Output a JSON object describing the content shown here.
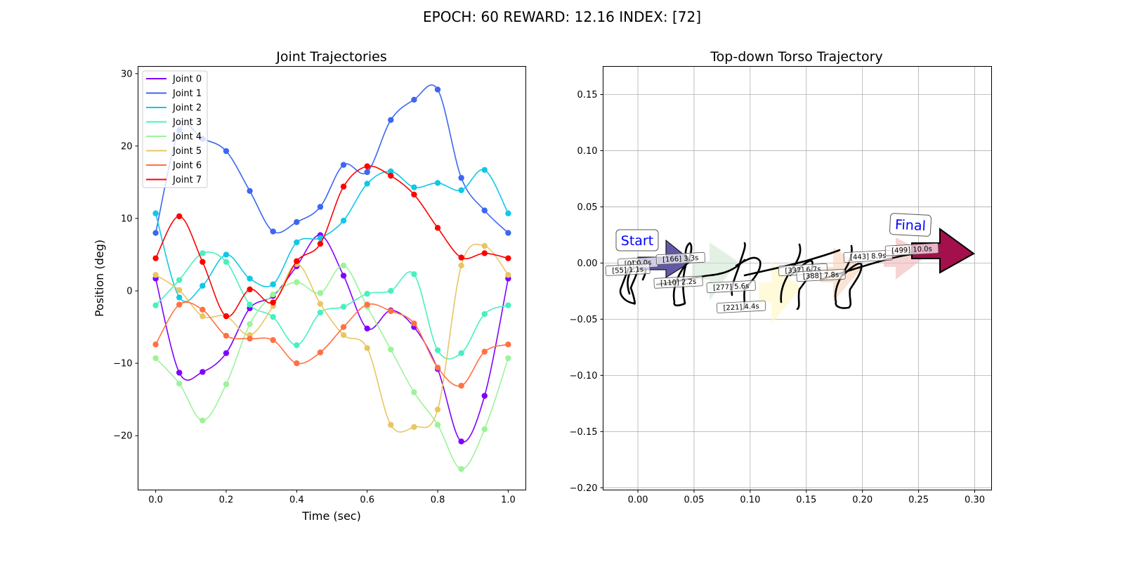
{
  "figure": {
    "suptitle": "EPOCH:  60 REWARD:  12.16 INDEX: [72]"
  },
  "chart_data": [
    {
      "type": "line",
      "title": "Joint Trajectories",
      "xlabel": "Time (sec)",
      "ylabel": "Position (deg)",
      "xlim": [
        -0.05,
        1.05
      ],
      "ylim": [
        -27.5,
        31
      ],
      "xticks": [
        0.0,
        0.2,
        0.4,
        0.6,
        0.8,
        1.0
      ],
      "xtick_labels": [
        "0.0",
        "0.2",
        "0.4",
        "0.6",
        "0.8",
        "1.0"
      ],
      "yticks": [
        -20,
        -10,
        0,
        10,
        20,
        30
      ],
      "ytick_labels": [
        "−20",
        "−10",
        "0",
        "10",
        "20",
        "30"
      ],
      "grid": false,
      "legend": "upper-left",
      "x": [
        0.0,
        0.067,
        0.133,
        0.2,
        0.267,
        0.333,
        0.4,
        0.467,
        0.533,
        0.6,
        0.667,
        0.733,
        0.8,
        0.867,
        0.933,
        1.0
      ],
      "series": [
        {
          "name": "Joint 0",
          "color": "#8000ff",
          "values": [
            1.7,
            -11.3,
            -11.2,
            -8.6,
            -2.4,
            -0.7,
            3.4,
            7.7,
            2.1,
            -5.2,
            -2.7,
            -5.0,
            -10.8,
            -20.8,
            -14.5,
            1.7
          ]
        },
        {
          "name": "Joint 1",
          "color": "#3c67f2",
          "values": [
            8.0,
            22.2,
            21.0,
            19.3,
            13.8,
            8.2,
            9.5,
            11.6,
            17.4,
            16.4,
            23.6,
            26.4,
            27.8,
            15.6,
            11.1,
            8.0
          ]
        },
        {
          "name": "Joint 2",
          "color": "#10c8e6",
          "values": [
            10.7,
            -0.9,
            0.7,
            5.0,
            1.7,
            0.9,
            6.7,
            7.3,
            9.7,
            14.8,
            16.5,
            14.3,
            14.9,
            13.9,
            16.7,
            10.7
          ]
        },
        {
          "name": "Joint 3",
          "color": "#48f0c0",
          "values": [
            -2.0,
            1.5,
            5.2,
            4.0,
            -1.9,
            -3.6,
            -7.5,
            -3.0,
            -2.2,
            -0.4,
            0.0,
            2.3,
            -8.2,
            -8.6,
            -3.2,
            -2.0
          ]
        },
        {
          "name": "Joint 4",
          "color": "#9cf39a",
          "values": [
            -9.3,
            -12.8,
            -17.9,
            -12.9,
            -4.6,
            -0.5,
            1.2,
            -0.3,
            3.5,
            -2.2,
            -8.1,
            -14.0,
            -18.5,
            -24.6,
            -19.1,
            -9.3
          ]
        },
        {
          "name": "Joint 5",
          "color": "#e8c664",
          "values": [
            2.2,
            0.1,
            -3.5,
            -3.5,
            -6.1,
            -2.1,
            3.7,
            -1.8,
            -6.1,
            -7.9,
            -18.5,
            -18.8,
            -16.4,
            3.5,
            6.2,
            2.2
          ]
        },
        {
          "name": "Joint 6",
          "color": "#ff7144",
          "values": [
            -7.4,
            -1.9,
            -2.6,
            -6.2,
            -6.6,
            -6.8,
            -10.0,
            -8.5,
            -5.0,
            -1.9,
            -2.8,
            -4.5,
            -10.6,
            -13.1,
            -8.4,
            -7.4
          ]
        },
        {
          "name": "Joint 7",
          "color": "#ff0000",
          "values": [
            4.5,
            10.3,
            4.0,
            -3.5,
            0.2,
            -1.6,
            4.1,
            6.5,
            14.4,
            17.2,
            15.9,
            13.3,
            8.7,
            4.6,
            5.2,
            4.5
          ]
        }
      ]
    },
    {
      "type": "scatter",
      "title": "Top-down Torso Trajectory",
      "xlim": [
        -0.031,
        0.315
      ],
      "ylim": [
        -0.202,
        0.175
      ],
      "xticks": [
        0.0,
        0.05,
        0.1,
        0.15,
        0.2,
        0.25,
        0.3
      ],
      "xtick_labels": [
        "0.00",
        "0.05",
        "0.10",
        "0.15",
        "0.20",
        "0.25",
        "0.30"
      ],
      "yticks": [
        -0.2,
        -0.15,
        -0.1,
        -0.05,
        0.0,
        0.05,
        0.1,
        0.15
      ],
      "ytick_labels": [
        "−0.20",
        "−0.15",
        "−0.10",
        "−0.05",
        "0.00",
        "0.05",
        "0.10",
        "0.15"
      ],
      "grid": true,
      "start_label": "Start",
      "final_label": "Final",
      "arrow_colors": [
        "#3b2f8f",
        "#cce6cf",
        "#fff6c2",
        "#f9cdb3",
        "#f0b7b9",
        "#a3104b"
      ],
      "labels": [
        {
          "text": "[0] 0.0s",
          "x": 0.0,
          "y": 0.0
        },
        {
          "text": "[55] 1.1s",
          "x": -0.009,
          "y": -0.006
        },
        {
          "text": "[110] 2.2s",
          "x": 0.036,
          "y": -0.017
        },
        {
          "text": "[166] 3.3s",
          "x": 0.038,
          "y": 0.004
        },
        {
          "text": "[221] 4.4s",
          "x": 0.092,
          "y": -0.039
        },
        {
          "text": "[277] 5.6s",
          "x": 0.083,
          "y": -0.021
        },
        {
          "text": "[332] 6.7s",
          "x": 0.147,
          "y": -0.006
        },
        {
          "text": "[388] 7.8s",
          "x": 0.163,
          "y": -0.011
        },
        {
          "text": "[443] 8.9s",
          "x": 0.205,
          "y": 0.006
        },
        {
          "text": "[499] 10.0s",
          "x": 0.244,
          "y": 0.012
        }
      ]
    }
  ]
}
